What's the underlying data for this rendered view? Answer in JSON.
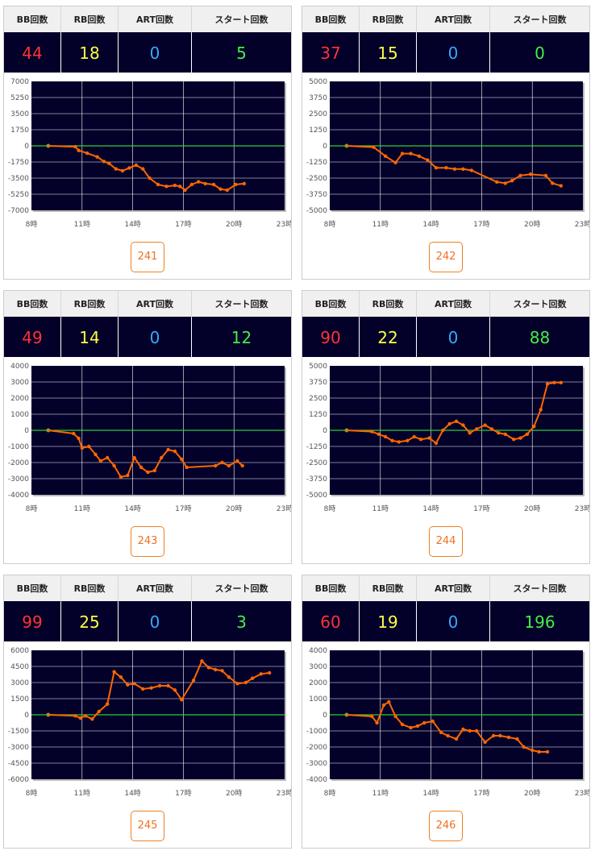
{
  "headers": {
    "bb": "BB回数",
    "rb": "RB回数",
    "art": "ART回数",
    "start": "スタート回数"
  },
  "colors": {
    "bb": "#ff3333",
    "rb": "#ffff44",
    "art": "#33aaff",
    "start": "#44ee44",
    "line": "#ff6600",
    "zero": "#33cc33",
    "plot_bg": "#03002a"
  },
  "x_ticks": [
    "8時",
    "11時",
    "14時",
    "17時",
    "20時",
    "23時"
  ],
  "machines": [
    {
      "id": "241",
      "bb": "44",
      "rb": "18",
      "art": "0",
      "start": "5"
    },
    {
      "id": "242",
      "bb": "37",
      "rb": "15",
      "art": "0",
      "start": "0"
    },
    {
      "id": "243",
      "bb": "49",
      "rb": "14",
      "art": "0",
      "start": "12"
    },
    {
      "id": "244",
      "bb": "90",
      "rb": "22",
      "art": "0",
      "start": "88"
    },
    {
      "id": "245",
      "bb": "99",
      "rb": "25",
      "art": "0",
      "start": "3"
    },
    {
      "id": "246",
      "bb": "60",
      "rb": "19",
      "art": "0",
      "start": "196"
    }
  ],
  "chart_data": [
    {
      "type": "line",
      "ylim": [
        -7000,
        7000
      ],
      "y_ticks": [
        "7000",
        "5250",
        "3500",
        "1750",
        "0",
        "-1750",
        "-3500",
        "-5250",
        "-7000"
      ],
      "x": [
        9,
        10.6,
        10.8,
        11.3,
        11.9,
        12.3,
        12.6,
        13,
        13.4,
        13.8,
        14.2,
        14.6,
        15,
        15.5,
        16,
        16.5,
        16.8,
        17.1,
        17.5,
        17.9,
        18.3,
        18.8,
        19.2,
        19.6,
        20.1,
        20.6
      ],
      "y": [
        0,
        -100,
        -500,
        -800,
        -1200,
        -1700,
        -1900,
        -2500,
        -2700,
        -2400,
        -2100,
        -2500,
        -3500,
        -4200,
        -4400,
        -4300,
        -4400,
        -4800,
        -4200,
        -3900,
        -4100,
        -4200,
        -4700,
        -4800,
        -4200,
        -4100
      ]
    },
    {
      "type": "line",
      "ylim": [
        -5000,
        5000
      ],
      "y_ticks": [
        "5000",
        "3750",
        "2500",
        "1250",
        "0",
        "-1250",
        "-2500",
        "-3750",
        "-5000"
      ],
      "x": [
        9,
        10.6,
        11.3,
        11.9,
        12.3,
        12.8,
        13.3,
        13.8,
        14.3,
        14.9,
        15.4,
        15.9,
        16.4,
        17.9,
        18.4,
        18.8,
        19.3,
        19.9,
        20.8,
        21.2,
        21.7
      ],
      "y": [
        0,
        -100,
        -800,
        -1300,
        -600,
        -600,
        -800,
        -1100,
        -1700,
        -1700,
        -1800,
        -1800,
        -1900,
        -2800,
        -2900,
        -2700,
        -2300,
        -2200,
        -2300,
        -2900,
        -3100
      ]
    },
    {
      "type": "line",
      "ylim": [
        -4000,
        4000
      ],
      "y_ticks": [
        "4000",
        "3000",
        "2000",
        "1000",
        "0",
        "-1000",
        "-2000",
        "-3000",
        "-4000"
      ],
      "x": [
        9,
        10.5,
        10.8,
        11,
        11.4,
        11.8,
        12.1,
        12.5,
        12.9,
        13.3,
        13.7,
        14.1,
        14.5,
        14.9,
        15.3,
        15.7,
        16.1,
        16.5,
        16.9,
        17.2,
        18.9,
        19.3,
        19.7,
        20.2,
        20.5
      ],
      "y": [
        0,
        -200,
        -500,
        -1100,
        -1000,
        -1500,
        -1900,
        -1700,
        -2200,
        -2900,
        -2800,
        -1700,
        -2300,
        -2600,
        -2500,
        -1700,
        -1200,
        -1300,
        -1800,
        -2300,
        -2200,
        -2000,
        -2200,
        -1900,
        -2200
      ]
    },
    {
      "type": "line",
      "ylim": [
        -5000,
        5000
      ],
      "y_ticks": [
        "5000",
        "3750",
        "2500",
        "1250",
        "0",
        "-1250",
        "-2500",
        "-3750",
        "-5000"
      ],
      "x": [
        9,
        10.5,
        10.9,
        11.3,
        11.7,
        12.1,
        12.6,
        13,
        13.4,
        13.9,
        14.3,
        14.7,
        15.1,
        15.5,
        15.9,
        16.3,
        16.7,
        17.2,
        17.6,
        18,
        18.4,
        18.9,
        19.3,
        19.7,
        20.1,
        20.5,
        20.9,
        21.3,
        21.7
      ],
      "y": [
        0,
        -100,
        -300,
        -500,
        -800,
        -900,
        -800,
        -500,
        -700,
        -600,
        -1000,
        0,
        500,
        700,
        400,
        -200,
        100,
        400,
        100,
        -200,
        -300,
        -700,
        -600,
        -300,
        300,
        1600,
        3600,
        3700,
        3700
      ]
    },
    {
      "type": "line",
      "ylim": [
        -6000,
        6000
      ],
      "y_ticks": [
        "6000",
        "4500",
        "3000",
        "1500",
        "0",
        "-1500",
        "-3000",
        "-4500",
        "-6000"
      ],
      "x": [
        9,
        10.6,
        10.9,
        11.2,
        11.6,
        12,
        12.5,
        12.9,
        13.3,
        13.7,
        14.1,
        14.6,
        15.1,
        15.6,
        16.1,
        16.5,
        16.9,
        17.6,
        18.1,
        18.5,
        18.9,
        19.3,
        19.7,
        20.2,
        20.7,
        21.1,
        21.6,
        22.1
      ],
      "y": [
        0,
        -100,
        -300,
        -100,
        -400,
        300,
        1000,
        4000,
        3500,
        2800,
        2900,
        2400,
        2500,
        2700,
        2700,
        2300,
        1400,
        3200,
        5000,
        4400,
        4200,
        4100,
        3500,
        2900,
        3000,
        3400,
        3800,
        3900
      ],
      "y_raw_note": ""
    },
    {
      "type": "line",
      "ylim": [
        -4000,
        4000
      ],
      "y_ticks": [
        "4000",
        "3000",
        "2000",
        "1000",
        "0",
        "-1000",
        "-2000",
        "-3000",
        "-4000"
      ],
      "x": [
        9,
        10.5,
        10.8,
        11.2,
        11.5,
        11.9,
        12.3,
        12.8,
        13.2,
        13.6,
        14.1,
        14.6,
        15,
        15.5,
        15.9,
        16.3,
        16.7,
        17.2,
        17.7,
        18.1,
        18.6,
        19.1,
        19.5,
        20,
        20.4,
        20.9
      ],
      "y": [
        0,
        -100,
        -500,
        600,
        800,
        -100,
        -600,
        -800,
        -700,
        -500,
        -400,
        -1100,
        -1300,
        -1500,
        -900,
        -1000,
        -1000,
        -1700,
        -1300,
        -1300,
        -1400,
        -1500,
        -2000,
        -2200,
        -2300,
        -2300
      ]
    }
  ]
}
